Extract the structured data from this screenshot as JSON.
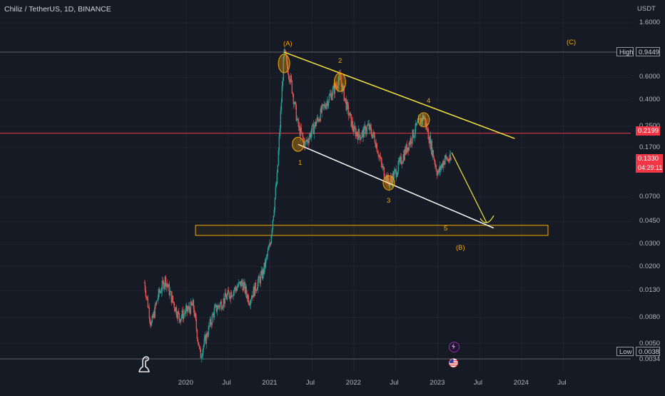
{
  "header": {
    "title": "Chiliz / TetherUS, 1D, BINANCE"
  },
  "axis": {
    "currency": "USDT"
  },
  "price_ticks": [
    "1.6000",
    "0.6000",
    "0.4000",
    "0.2500",
    "0.1700",
    "0.0700",
    "0.0450",
    "0.0300",
    "0.0200",
    "0.0130",
    "0.0080",
    "0.0050"
  ],
  "time_ticks": [
    "2020",
    "Jul",
    "2021",
    "Jul",
    "2022",
    "Jul",
    "2023",
    "Jul",
    "2024",
    "Jul"
  ],
  "tags": {
    "high_label": "High",
    "high_value": "0.9449",
    "low_label": "Low",
    "low_value": "0.0038",
    "resistance_value": "0.2199",
    "current_price": "0.1330",
    "countdown": "04:29:11",
    "clipped_price": "0.0034"
  },
  "wave_labels": [
    "(A)",
    "(B)",
    "(C)",
    "1",
    "2",
    "3",
    "4",
    "5"
  ],
  "colors": {
    "background": "#161a25",
    "up": "#26a69a",
    "down": "#ef5350",
    "trend_upper": "#f5e53b",
    "trend_lower": "#ffffff",
    "wave": "#f7a600",
    "resistance": "#f23645"
  },
  "icons": [
    "tradingview-logo-icon",
    "lightning-icon",
    "us-flag-icon"
  ],
  "chart_data": {
    "type": "candlestick",
    "title": "Chiliz / TetherUS, 1D, BINANCE",
    "y_scale": "log",
    "ylim": [
      0.0038,
      1.6
    ],
    "xlim": [
      "2019-07",
      "2024-11"
    ],
    "high": 0.9449,
    "low": 0.0038,
    "current": 0.133,
    "resistance": 0.2199,
    "support_zone": [
      0.035,
      0.042
    ],
    "price_path": [
      [
        "2019-07",
        0.015
      ],
      [
        "2019-08",
        0.007
      ],
      [
        "2019-09",
        0.012
      ],
      [
        "2019-10",
        0.016
      ],
      [
        "2019-11",
        0.011
      ],
      [
        "2019-12",
        0.008
      ],
      [
        "2020-02",
        0.01
      ],
      [
        "2020-03",
        0.004
      ],
      [
        "2020-05",
        0.009
      ],
      [
        "2020-07",
        0.012
      ],
      [
        "2020-09",
        0.015
      ],
      [
        "2020-10",
        0.011
      ],
      [
        "2020-12",
        0.018
      ],
      [
        "2021-01",
        0.03
      ],
      [
        "2021-02",
        0.1
      ],
      [
        "2021-03",
        0.9449
      ],
      [
        "2021-04",
        0.55
      ],
      [
        "2021-05",
        0.25
      ],
      [
        "2021-06",
        0.18
      ],
      [
        "2021-07",
        0.23
      ],
      [
        "2021-09",
        0.38
      ],
      [
        "2021-10",
        0.47
      ],
      [
        "2021-11",
        0.6
      ],
      [
        "2021-12",
        0.35
      ],
      [
        "2022-01",
        0.23
      ],
      [
        "2022-02",
        0.21
      ],
      [
        "2022-03",
        0.25
      ],
      [
        "2022-04",
        0.2
      ],
      [
        "2022-05",
        0.12
      ],
      [
        "2022-06",
        0.09
      ],
      [
        "2022-07",
        0.11
      ],
      [
        "2022-09",
        0.19
      ],
      [
        "2022-10",
        0.25
      ],
      [
        "2022-11",
        0.3
      ],
      [
        "2022-12",
        0.18
      ],
      [
        "2023-01",
        0.105
      ],
      [
        "2023-02",
        0.14
      ],
      [
        "2023-03",
        0.133
      ]
    ],
    "trendlines": [
      {
        "name": "upper",
        "from": [
          "2021-03",
          0.9449
        ],
        "to": [
          "2023-12",
          0.2
        ]
      },
      {
        "name": "lower",
        "from": [
          "2021-05",
          0.18
        ],
        "to": [
          "2023-09",
          0.04
        ]
      },
      {
        "name": "projection",
        "from": [
          "2023-03",
          0.155
        ],
        "to": [
          "2023-08",
          0.044
        ]
      }
    ],
    "wave_points": [
      {
        "label": "(A)",
        "x": "2021-03",
        "y": 0.9449
      },
      {
        "label": "1",
        "x": "2021-05",
        "y": 0.18
      },
      {
        "label": "2",
        "x": "2021-11",
        "y": 0.55
      },
      {
        "label": "3",
        "x": "2022-06",
        "y": 0.09
      },
      {
        "label": "4",
        "x": "2022-11",
        "y": 0.28
      },
      {
        "label": "5",
        "x": "2023-07",
        "y": 0.04
      },
      {
        "label": "(B)",
        "x": "2023-08",
        "y": 0.03
      },
      {
        "label": "(C)",
        "x": "2024-05",
        "y": 1.05
      }
    ]
  }
}
